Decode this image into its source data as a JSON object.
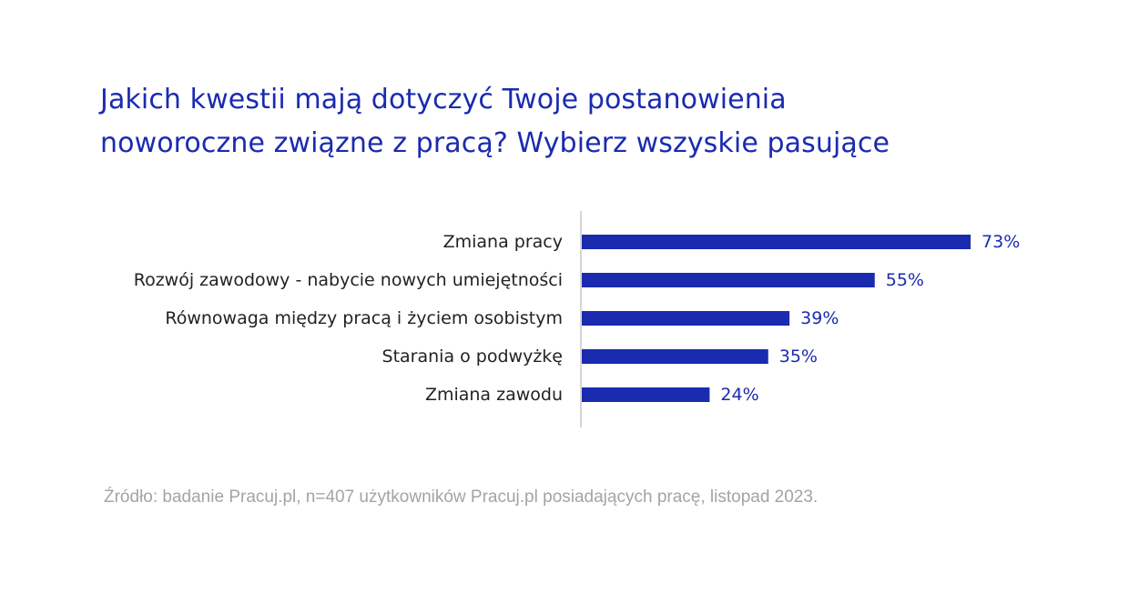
{
  "title": {
    "line1": "Jakich kwestii mają dotyczyć Twoje postanowienia",
    "line2": "noworoczne związne z pracą? Wybierz wszyskie pasujące"
  },
  "source": "Źródło: badanie Pracuj.pl, n=407 użytkowników Pracuj.pl posiadających pracę, listopad 2023.",
  "colors": {
    "bar": "#1a2bb0",
    "title": "#1a2bb0",
    "value_label": "#1a2bb0",
    "axis": "#c8c8c8",
    "source": "#a4a4a4"
  },
  "chart_data": {
    "type": "bar",
    "orientation": "horizontal",
    "categories": [
      "Zmiana pracy",
      "Rozwój zawodowy - nabycie nowych umiejętności",
      "Równowaga między pracą i życiem osobistym",
      "Starania o podwyżkę",
      "Zmiana zawodu"
    ],
    "values": [
      73,
      55,
      39,
      35,
      24
    ],
    "value_labels": [
      "73%",
      "55%",
      "39%",
      "35%",
      "24%"
    ],
    "unit": "%",
    "xlim": [
      0,
      100
    ],
    "grid": false,
    "legend": false
  }
}
